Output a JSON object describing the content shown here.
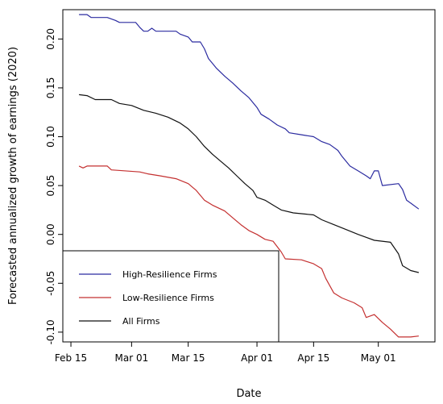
{
  "chart_data": {
    "type": "line",
    "title": "",
    "xlabel": "Date",
    "ylabel": "Forecasted annualized growth of earnings (2020)",
    "x_start": "2020-02-17",
    "x_end": "2020-05-11",
    "xlim": [
      "2020-02-13",
      "2020-05-15"
    ],
    "ylim": [
      -0.11,
      0.23
    ],
    "x_ticks": [
      {
        "date": "2020-02-15",
        "label": "Feb 15"
      },
      {
        "date": "2020-03-01",
        "label": "Mar 01"
      },
      {
        "date": "2020-03-15",
        "label": "Mar 15"
      },
      {
        "date": "2020-04-01",
        "label": "Apr 01"
      },
      {
        "date": "2020-04-15",
        "label": "Apr 15"
      },
      {
        "date": "2020-05-01",
        "label": "May 01"
      }
    ],
    "y_ticks": [
      {
        "value": 0.2,
        "label": "0.20"
      },
      {
        "value": 0.15,
        "label": "0.15"
      },
      {
        "value": 0.1,
        "label": "0.10"
      },
      {
        "value": 0.05,
        "label": "0.05"
      },
      {
        "value": 0.0,
        "label": "0.00"
      },
      {
        "value": -0.05,
        "label": "-0.05"
      },
      {
        "value": -0.1,
        "label": "-0.10"
      }
    ],
    "grid": false,
    "legend_position": "bottom-left",
    "series": [
      {
        "name": "High-Resilience Firms",
        "color": "#2b2ba0",
        "points": [
          [
            "2020-02-17",
            0.225
          ],
          [
            "2020-02-19",
            0.225
          ],
          [
            "2020-02-20",
            0.222
          ],
          [
            "2020-02-24",
            0.222
          ],
          [
            "2020-02-26",
            0.219
          ],
          [
            "2020-02-27",
            0.217
          ],
          [
            "2020-03-02",
            0.217
          ],
          [
            "2020-03-03",
            0.212
          ],
          [
            "2020-03-04",
            0.208
          ],
          [
            "2020-03-05",
            0.208
          ],
          [
            "2020-03-06",
            0.211
          ],
          [
            "2020-03-07",
            0.208
          ],
          [
            "2020-03-12",
            0.208
          ],
          [
            "2020-03-13",
            0.205
          ],
          [
            "2020-03-15",
            0.202
          ],
          [
            "2020-03-16",
            0.197
          ],
          [
            "2020-03-18",
            0.197
          ],
          [
            "2020-03-19",
            0.19
          ],
          [
            "2020-03-20",
            0.18
          ],
          [
            "2020-03-21",
            0.175
          ],
          [
            "2020-03-22",
            0.17
          ],
          [
            "2020-03-24",
            0.162
          ],
          [
            "2020-03-26",
            0.155
          ],
          [
            "2020-03-28",
            0.147
          ],
          [
            "2020-03-30",
            0.14
          ],
          [
            "2020-04-01",
            0.13
          ],
          [
            "2020-04-02",
            0.123
          ],
          [
            "2020-04-04",
            0.118
          ],
          [
            "2020-04-06",
            0.112
          ],
          [
            "2020-04-08",
            0.108
          ],
          [
            "2020-04-09",
            0.104
          ],
          [
            "2020-04-12",
            0.102
          ],
          [
            "2020-04-15",
            0.1
          ],
          [
            "2020-04-17",
            0.095
          ],
          [
            "2020-04-19",
            0.092
          ],
          [
            "2020-04-21",
            0.086
          ],
          [
            "2020-04-22",
            0.08
          ],
          [
            "2020-04-24",
            0.07
          ],
          [
            "2020-04-26",
            0.065
          ],
          [
            "2020-04-28",
            0.06
          ],
          [
            "2020-04-29",
            0.057
          ],
          [
            "2020-04-30",
            0.065
          ],
          [
            "2020-05-01",
            0.065
          ],
          [
            "2020-05-02",
            0.05
          ],
          [
            "2020-05-06",
            0.052
          ],
          [
            "2020-05-07",
            0.046
          ],
          [
            "2020-05-08",
            0.035
          ],
          [
            "2020-05-09",
            0.032
          ],
          [
            "2020-05-11",
            0.026
          ]
        ]
      },
      {
        "name": "Low-Resilience Firms",
        "color": "#c43030",
        "points": [
          [
            "2020-02-17",
            0.07
          ],
          [
            "2020-02-18",
            0.068
          ],
          [
            "2020-02-19",
            0.07
          ],
          [
            "2020-02-24",
            0.07
          ],
          [
            "2020-02-25",
            0.066
          ],
          [
            "2020-03-03",
            0.064
          ],
          [
            "2020-03-05",
            0.062
          ],
          [
            "2020-03-08",
            0.06
          ],
          [
            "2020-03-12",
            0.057
          ],
          [
            "2020-03-15",
            0.052
          ],
          [
            "2020-03-17",
            0.045
          ],
          [
            "2020-03-19",
            0.035
          ],
          [
            "2020-03-21",
            0.03
          ],
          [
            "2020-03-24",
            0.024
          ],
          [
            "2020-03-26",
            0.017
          ],
          [
            "2020-03-28",
            0.01
          ],
          [
            "2020-03-30",
            0.004
          ],
          [
            "2020-04-01",
            0.0
          ],
          [
            "2020-04-03",
            -0.005
          ],
          [
            "2020-04-05",
            -0.007
          ],
          [
            "2020-04-07",
            -0.018
          ],
          [
            "2020-04-08",
            -0.025
          ],
          [
            "2020-04-12",
            -0.026
          ],
          [
            "2020-04-15",
            -0.03
          ],
          [
            "2020-04-17",
            -0.035
          ],
          [
            "2020-04-18",
            -0.045
          ],
          [
            "2020-04-20",
            -0.06
          ],
          [
            "2020-04-22",
            -0.065
          ],
          [
            "2020-04-25",
            -0.07
          ],
          [
            "2020-04-27",
            -0.075
          ],
          [
            "2020-04-28",
            -0.085
          ],
          [
            "2020-04-30",
            -0.082
          ],
          [
            "2020-05-02",
            -0.09
          ],
          [
            "2020-05-04",
            -0.097
          ],
          [
            "2020-05-06",
            -0.105
          ],
          [
            "2020-05-09",
            -0.105
          ],
          [
            "2020-05-11",
            -0.104
          ]
        ]
      },
      {
        "name": "All Firms",
        "color": "#111111",
        "points": [
          [
            "2020-02-17",
            0.143
          ],
          [
            "2020-02-19",
            0.142
          ],
          [
            "2020-02-21",
            0.138
          ],
          [
            "2020-02-25",
            0.138
          ],
          [
            "2020-02-27",
            0.134
          ],
          [
            "2020-03-01",
            0.132
          ],
          [
            "2020-03-04",
            0.127
          ],
          [
            "2020-03-07",
            0.124
          ],
          [
            "2020-03-10",
            0.12
          ],
          [
            "2020-03-13",
            0.114
          ],
          [
            "2020-03-15",
            0.108
          ],
          [
            "2020-03-17",
            0.1
          ],
          [
            "2020-03-19",
            0.09
          ],
          [
            "2020-03-21",
            0.082
          ],
          [
            "2020-03-23",
            0.075
          ],
          [
            "2020-03-25",
            0.068
          ],
          [
            "2020-03-27",
            0.06
          ],
          [
            "2020-03-29",
            0.052
          ],
          [
            "2020-03-31",
            0.045
          ],
          [
            "2020-04-01",
            0.038
          ],
          [
            "2020-04-03",
            0.035
          ],
          [
            "2020-04-05",
            0.03
          ],
          [
            "2020-04-07",
            0.025
          ],
          [
            "2020-04-10",
            0.022
          ],
          [
            "2020-04-15",
            0.02
          ],
          [
            "2020-04-17",
            0.015
          ],
          [
            "2020-04-20",
            0.01
          ],
          [
            "2020-04-23",
            0.005
          ],
          [
            "2020-04-26",
            0.0
          ],
          [
            "2020-04-28",
            -0.003
          ],
          [
            "2020-04-30",
            -0.006
          ],
          [
            "2020-05-04",
            -0.008
          ],
          [
            "2020-05-06",
            -0.02
          ],
          [
            "2020-05-07",
            -0.032
          ],
          [
            "2020-05-09",
            -0.037
          ],
          [
            "2020-05-11",
            -0.039
          ]
        ]
      }
    ]
  }
}
